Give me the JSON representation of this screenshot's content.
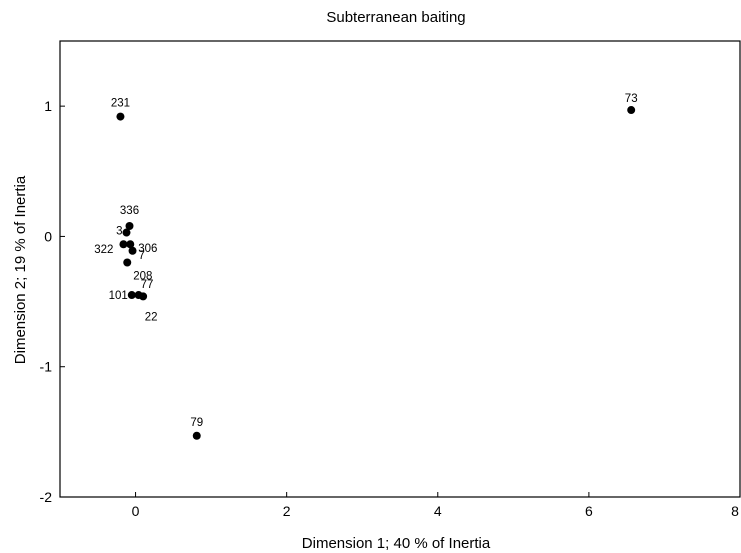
{
  "chart_data": {
    "type": "scatter",
    "title": "Subterranean baiting",
    "xlabel": "Dimension 1; 40 % of Inertia",
    "ylabel": "Dimension 2; 19 % of Inertia",
    "xlim": [
      -1,
      8
    ],
    "ylim": [
      -2,
      1.5
    ],
    "x_ticks": [
      0,
      2,
      4,
      6,
      8
    ],
    "y_ticks": [
      1,
      0,
      -1,
      -2
    ],
    "x_tick_labels": [
      "0",
      "2",
      "4",
      "6",
      "8"
    ],
    "y_tick_labels": [
      "1",
      "0",
      "-1",
      "-2"
    ],
    "grid": false,
    "marker_color": "#000000",
    "points": [
      {
        "label": "231",
        "x": -0.2,
        "y": 0.92
      },
      {
        "label": "73",
        "x": 6.56,
        "y": 0.97
      },
      {
        "label": "336",
        "x": -0.08,
        "y": 0.08
      },
      {
        "label": "3",
        "x": -0.12,
        "y": 0.03
      },
      {
        "label": "306",
        "x": -0.07,
        "y": -0.06
      },
      {
        "label": "322",
        "x": -0.16,
        "y": -0.06
      },
      {
        "label": "7",
        "x": -0.04,
        "y": -0.11
      },
      {
        "label": "208",
        "x": -0.11,
        "y": -0.2
      },
      {
        "label": "77",
        "x": 0.04,
        "y": -0.45
      },
      {
        "label": "101",
        "x": -0.05,
        "y": -0.45
      },
      {
        "label": "22",
        "x": 0.1,
        "y": -0.46
      },
      {
        "label": "79",
        "x": 0.81,
        "y": -1.53
      }
    ]
  }
}
